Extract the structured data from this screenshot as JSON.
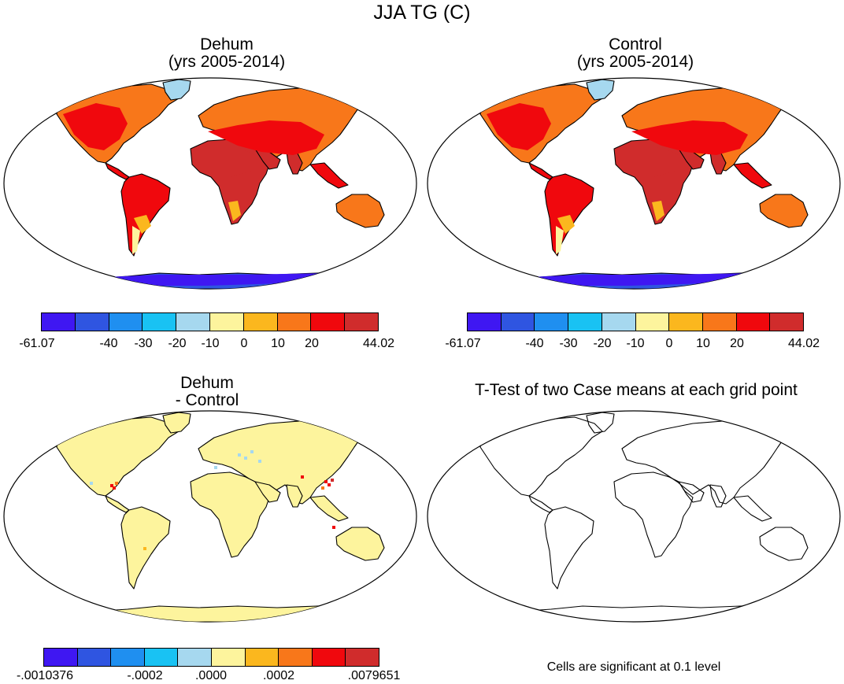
{
  "title": "JJA TG (C)",
  "panels": [
    {
      "id": "dehum",
      "title_line1": "Dehum",
      "title_line2": "(yrs 2005-2014)"
    },
    {
      "id": "control",
      "title_line1": "Control",
      "title_line2": "(yrs 2005-2014)"
    },
    {
      "id": "diff",
      "title_line1": "Dehum",
      "title_line2": "- Control"
    },
    {
      "id": "ttest",
      "title_line1": "T-Test of two Case means at each grid point"
    }
  ],
  "colorbar_colors": [
    "#3f17f2",
    "#2f55e1",
    "#1f8ff0",
    "#19c2f3",
    "#a6d8ef",
    "#fdf49d",
    "#fbb71e",
    "#f8771a",
    "#f0080d",
    "#d02c2c"
  ],
  "colorbar_main_ticks": [
    "-61.07",
    "-40",
    "-30",
    "-20",
    "-10",
    "0",
    "10",
    "20",
    "44.02"
  ],
  "colorbar_diff_ticks": [
    "-.0010376",
    "-.0002",
    ".0000",
    ".0002",
    ".0079651"
  ],
  "ttest_note": "Cells are significant at 0.1 level"
}
